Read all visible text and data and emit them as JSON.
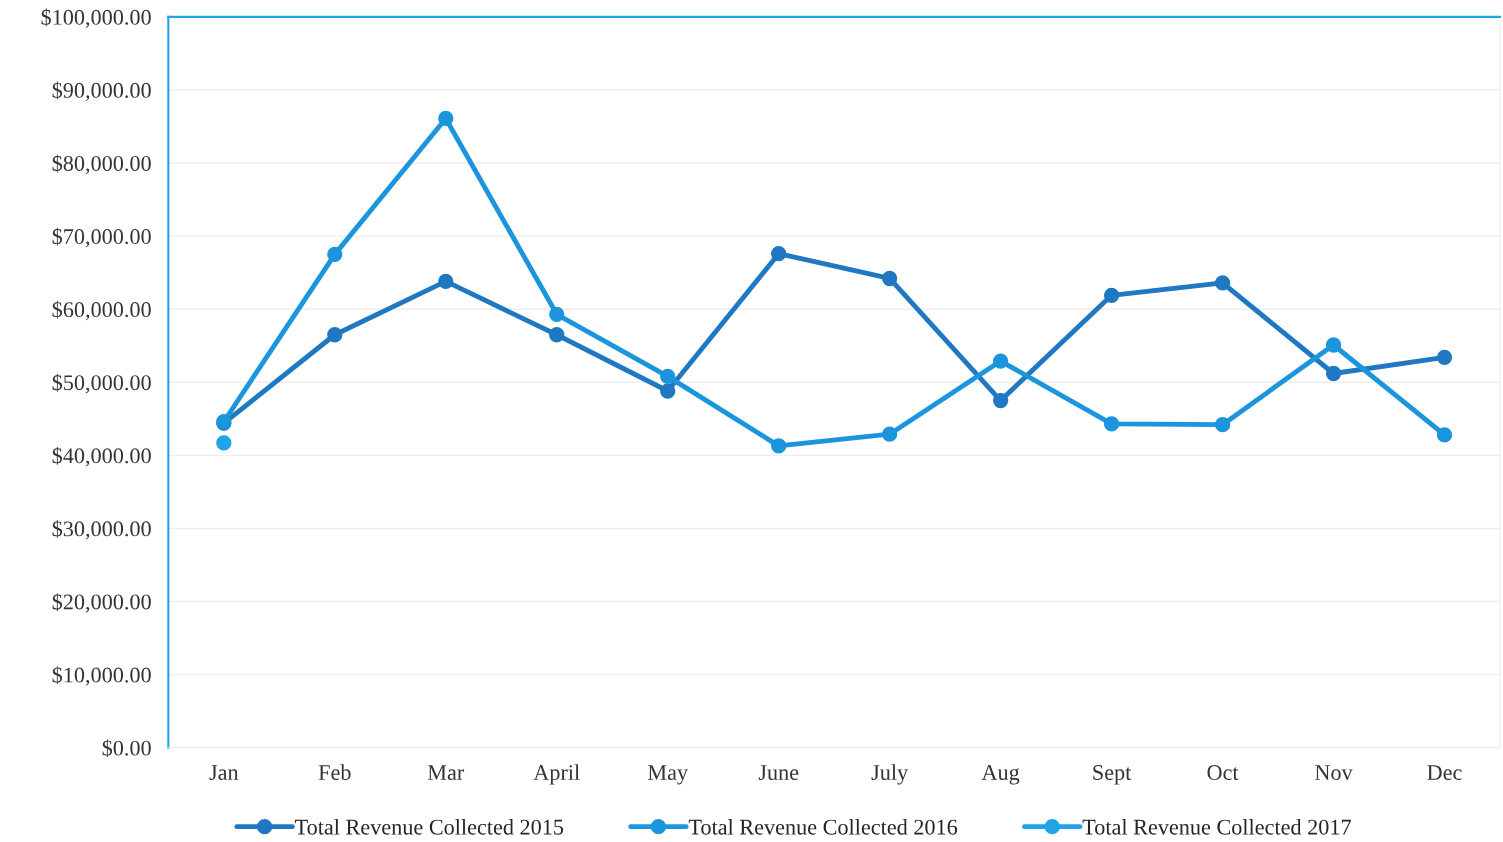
{
  "chart_data": {
    "type": "line",
    "categories": [
      "Jan",
      "Feb",
      "Mar",
      "April",
      "May",
      "June",
      "July",
      "Aug",
      "Sept",
      "Oct",
      "Nov",
      "Dec"
    ],
    "series": [
      {
        "name": "Total Revenue Collected 2015",
        "color": "#1f78c1",
        "values": [
          44400,
          56500,
          63800,
          56500,
          48800,
          67600,
          64200,
          47500,
          61900,
          63600,
          51200,
          53400
        ]
      },
      {
        "name": "Total Revenue Collected 2016",
        "color": "#1b95dc",
        "values": [
          44600,
          67500,
          86100,
          59300,
          50800,
          41300,
          42900,
          52900,
          44300,
          44200,
          55100,
          42800
        ]
      },
      {
        "name": "Total Revenue Collected 2017",
        "color": "#1fa5e6",
        "values": [
          41700,
          null,
          null,
          null,
          null,
          null,
          null,
          null,
          null,
          null,
          null,
          null
        ]
      }
    ],
    "ylim": [
      0,
      100000
    ],
    "yticks": [
      {
        "value": 0,
        "label": "$0.00"
      },
      {
        "value": 10000,
        "label": "$10,000.00"
      },
      {
        "value": 20000,
        "label": "$20,000.00"
      },
      {
        "value": 30000,
        "label": "$30,000.00"
      },
      {
        "value": 40000,
        "label": "$40,000.00"
      },
      {
        "value": 50000,
        "label": "$50,000.00"
      },
      {
        "value": 60000,
        "label": "$60,000.00"
      },
      {
        "value": 70000,
        "label": "$70,000.00"
      },
      {
        "value": 80000,
        "label": "$80,000.00"
      },
      {
        "value": 90000,
        "label": "$90,000.00"
      },
      {
        "value": 100000,
        "label": "$100,000.00"
      }
    ],
    "grid": "y",
    "legend": "bottom",
    "marker": "circle",
    "line_style": "solid"
  }
}
